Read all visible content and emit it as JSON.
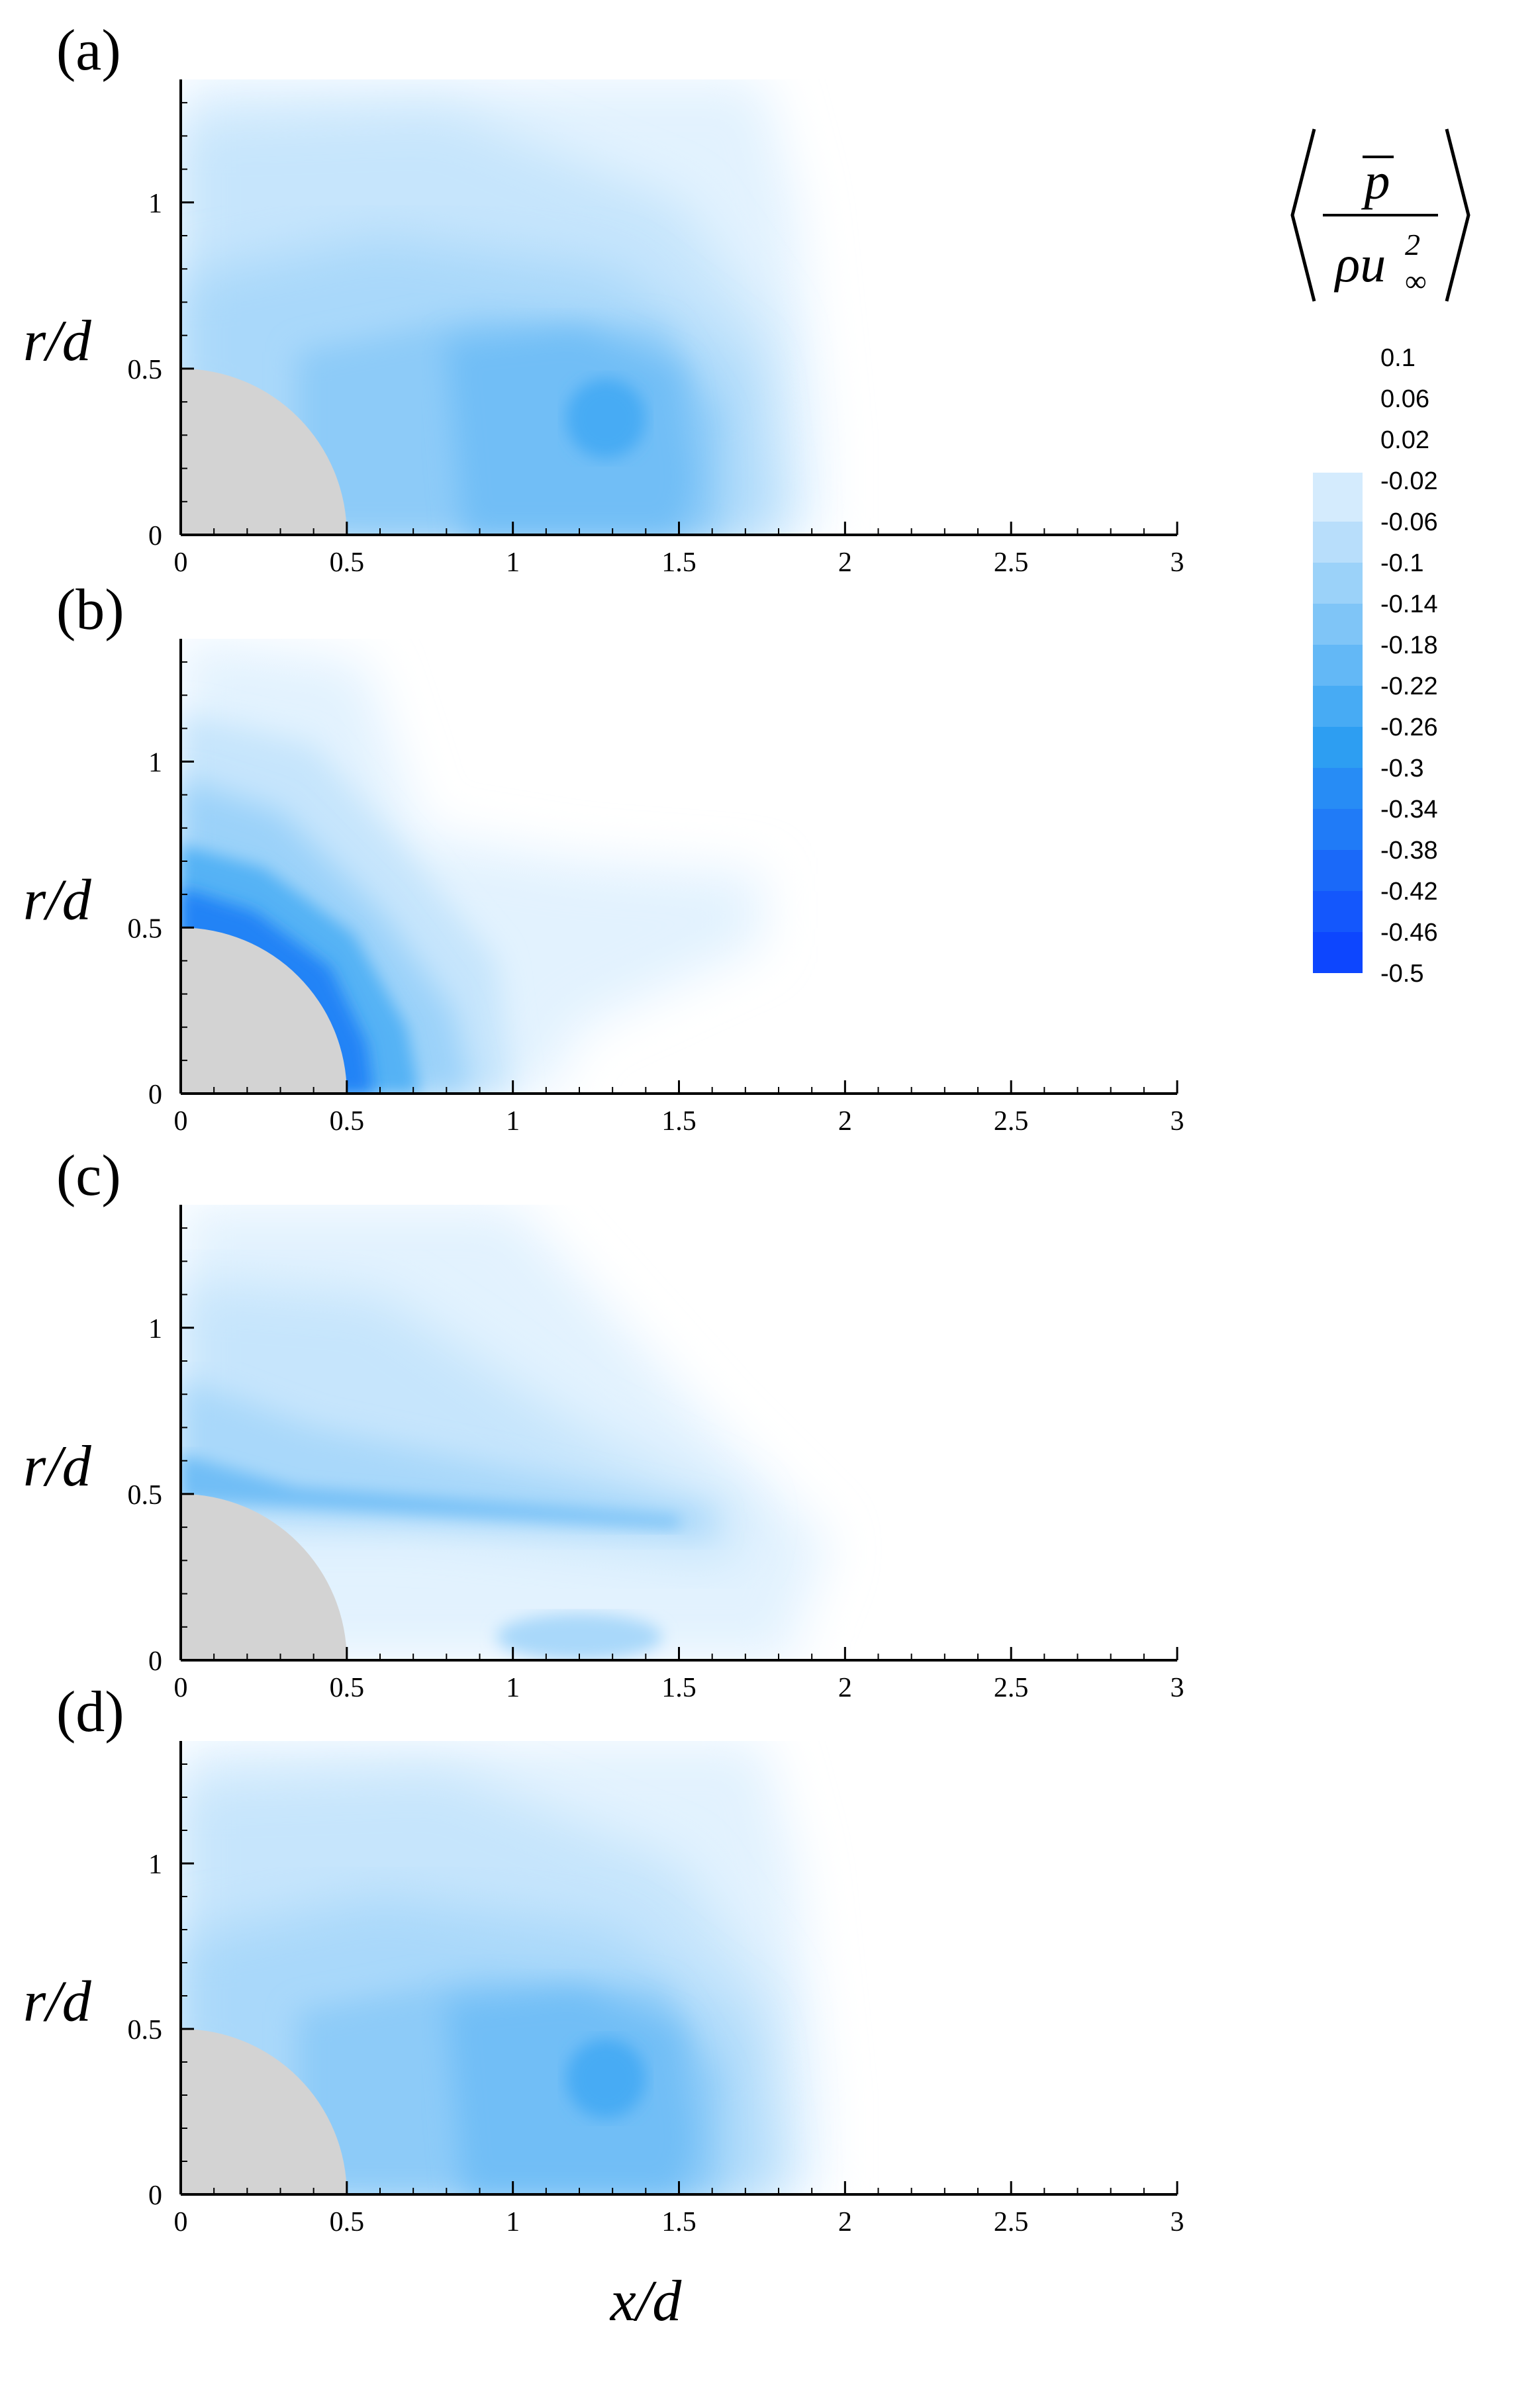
{
  "chart_data": [
    {
      "type": "heatmap",
      "panel_label": "(a)",
      "xlabel": "",
      "ylabel": "r/d",
      "xlim": [
        0,
        3
      ],
      "ylim": [
        0,
        1.37
      ],
      "x_ticks": [
        "0",
        "0.5",
        "1",
        "1.5",
        "2",
        "2.5",
        "3"
      ],
      "y_ticks": [
        "0",
        "0.5",
        "1"
      ],
      "body_radius": 0.5,
      "field": "a"
    },
    {
      "type": "heatmap",
      "panel_label": "(b)",
      "xlabel": "",
      "ylabel": "r/d",
      "xlim": [
        0,
        3
      ],
      "ylim": [
        0,
        1.37
      ],
      "x_ticks": [
        "0",
        "0.5",
        "1",
        "1.5",
        "2",
        "2.5",
        "3"
      ],
      "y_ticks": [
        "0",
        "0.5",
        "1"
      ],
      "body_radius": 0.5,
      "field": "b"
    },
    {
      "type": "heatmap",
      "panel_label": "(c)",
      "xlabel": "",
      "ylabel": "r/d",
      "xlim": [
        0,
        3
      ],
      "ylim": [
        0,
        1.37
      ],
      "x_ticks": [
        "0",
        "0.5",
        "1",
        "1.5",
        "2",
        "2.5",
        "3"
      ],
      "y_ticks": [
        "0",
        "0.5",
        "1"
      ],
      "body_radius": 0.5,
      "field": "c"
    },
    {
      "type": "heatmap",
      "panel_label": "(d)",
      "xlabel": "x/d",
      "ylabel": "r/d",
      "xlim": [
        0,
        3
      ],
      "ylim": [
        0,
        1.37
      ],
      "x_ticks": [
        "0",
        "0.5",
        "1",
        "1.5",
        "2",
        "2.5",
        "3"
      ],
      "y_ticks": [
        "0",
        "0.5",
        "1"
      ],
      "body_radius": 0.5,
      "field": "a"
    }
  ],
  "colorbar": {
    "title_numerator": "p",
    "title_denominator_rho": "ρu",
    "title_sup": "2",
    "title_sub": "∞",
    "levels": [
      "0.1",
      "0.06",
      "0.02",
      "-0.02",
      "-0.06",
      "-0.1",
      "-0.14",
      "-0.18",
      "-0.22",
      "-0.26",
      "-0.3",
      "-0.34",
      "-0.38",
      "-0.42",
      "-0.46",
      "-0.5"
    ],
    "color_min": "#0a3dff",
    "color_mid": "#2ea0f2",
    "color_max": "#f0f8ff",
    "body_color": "#d3d3d3"
  }
}
